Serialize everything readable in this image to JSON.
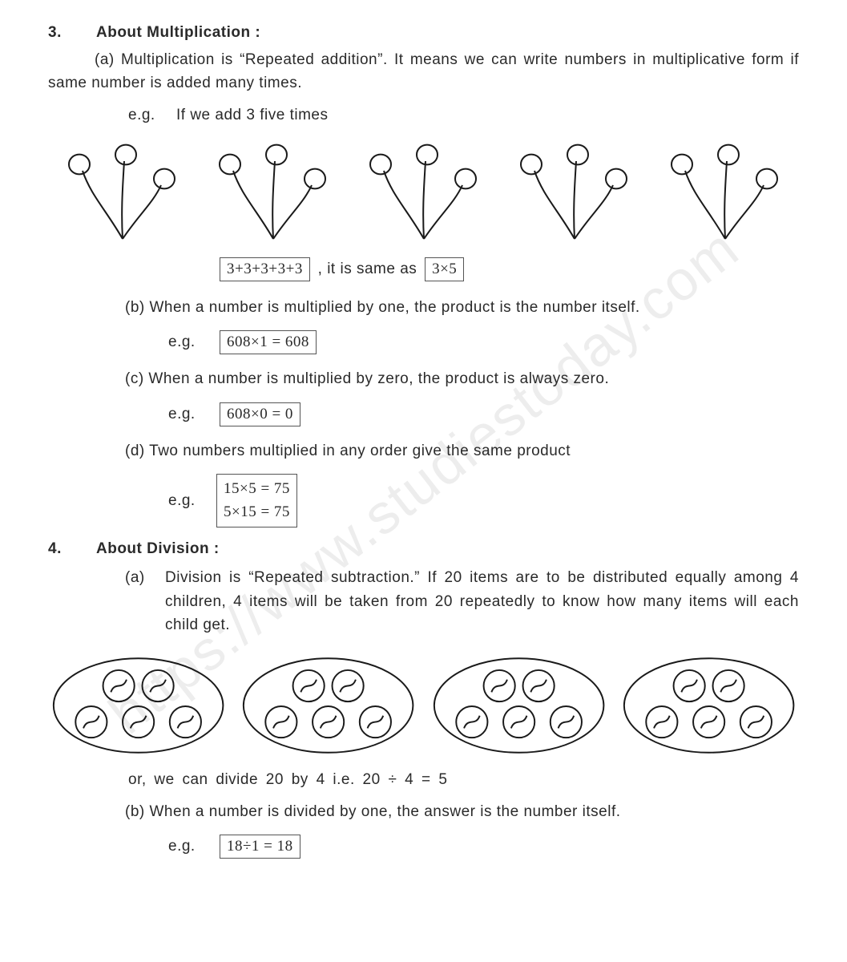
{
  "watermark": "https://www.studiestoday.com",
  "sec3": {
    "num": "3.",
    "title": "About Multiplication :",
    "a": "(a) Multiplication is “Repeated addition”. It means we can write numbers in multiplicative form if same number is added many times.",
    "eg_intro_prefix": "e.g.",
    "eg_intro": "If we add 3 five times",
    "addition_box": "3+3+3+3+3",
    "same_as": ", it is same as",
    "mult_box": "3×5",
    "b": "(b) When a number is multiplied by one, the product is the number itself.",
    "b_eg": "608×1 = 608",
    "c": "(c) When a number is multiplied by zero, the product is always zero.",
    "c_eg": "608×0 = 0",
    "d": "(d) Two numbers multiplied in any order give the same product",
    "d_eg_line1": "15×5 = 75",
    "d_eg_line2": "5×15 = 75"
  },
  "sec4": {
    "num": "4.",
    "title": "About Division :",
    "a_label": "(a)",
    "a": "Division is “Repeated subtraction.” If 20 items are to be distributed equally among 4 children, 4 items will be taken from 20 repeatedly to know how many items will each child get.",
    "or_line": "or, we  can divide 20 by 4 i.e. 20 ÷ 4 = 5",
    "b": "(b) When a number is divided by one, the answer is the number itself.",
    "b_eg": "18÷1 = 18"
  },
  "eg_label": "e.g.",
  "diagrams": {
    "flower_count": 5,
    "flower_stroke": "#1a1a1a",
    "flower_stroke_width": 2,
    "oval_count": 4,
    "oval_items": 5,
    "oval_stroke": "#1a1a1a",
    "oval_stroke_width": 2
  },
  "colors": {
    "text": "#2a2a2a",
    "box_border": "#555555",
    "background": "#ffffff",
    "watermark": "rgba(0,0,0,0.07)"
  }
}
